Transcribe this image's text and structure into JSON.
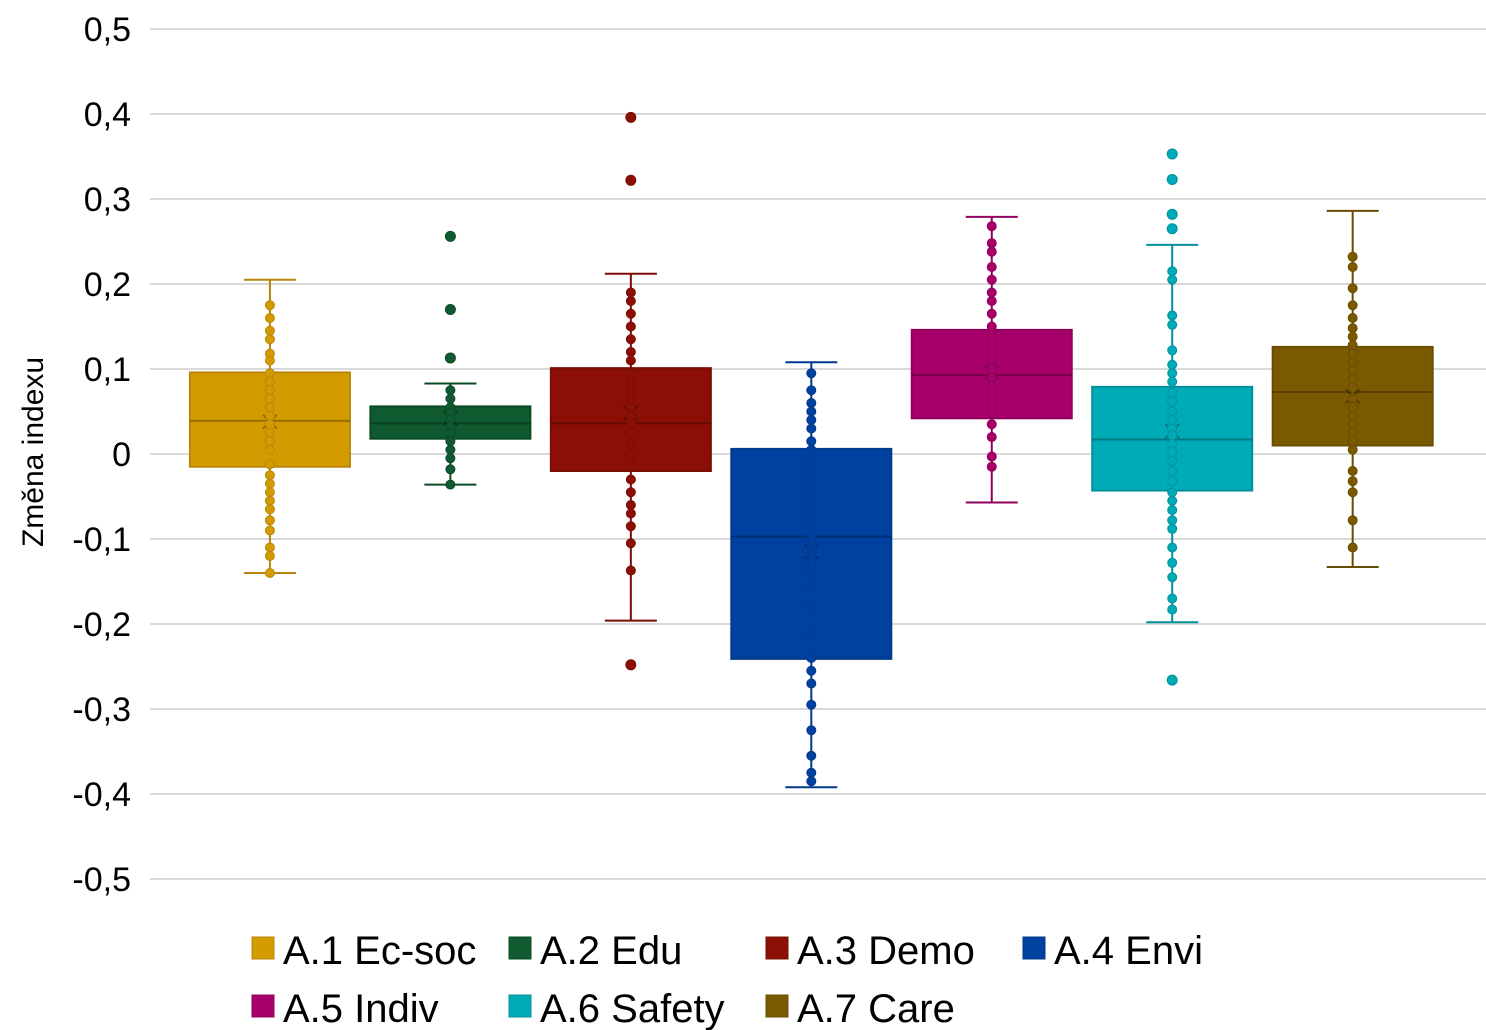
{
  "chart_data": {
    "type": "box",
    "title": "",
    "xlabel": "",
    "ylabel": "Změna indexu",
    "ylim": [
      -0.5,
      0.5
    ],
    "yticks": [
      0.5,
      0.4,
      0.3,
      0.2,
      0.1,
      0,
      -0.1,
      -0.2,
      -0.3,
      -0.4,
      -0.5
    ],
    "ytick_labels": [
      "0,5",
      "0,4",
      "0,3",
      "0,2",
      "0,1",
      "0",
      "-0,1",
      "-0,2",
      "-0,3",
      "-0,4",
      "-0,5"
    ],
    "grid": true,
    "legend_position": "bottom",
    "series": [
      {
        "name": "A.1 Ec-soc",
        "color": "#D49B00",
        "stroke": "#B8860B",
        "q1": -0.015,
        "median": 0.039,
        "q3": 0.096,
        "mean": 0.038,
        "whisker_low": -0.14,
        "whisker_high": 0.205,
        "points": [
          0.175,
          0.16,
          0.145,
          0.135,
          0.118,
          0.11,
          0.095,
          0.085,
          0.075,
          0.065,
          0.055,
          0.045,
          0.035,
          0.025,
          0.015,
          0.005,
          -0.012,
          -0.025,
          -0.035,
          -0.045,
          -0.055,
          -0.065,
          -0.078,
          -0.09,
          -0.11,
          -0.12,
          -0.14
        ],
        "outliers": []
      },
      {
        "name": "A.2 Edu",
        "color": "#0F5A2E",
        "stroke": "#0B4A26",
        "q1": 0.018,
        "median": 0.036,
        "q3": 0.056,
        "mean": 0.042,
        "whisker_low": -0.036,
        "whisker_high": 0.083,
        "points": [
          0.075,
          0.065,
          0.055,
          0.048,
          0.04,
          0.032,
          0.025,
          0.015,
          0.005,
          -0.005,
          -0.018,
          -0.036
        ],
        "outliers": [
          0.256,
          0.17,
          0.113
        ]
      },
      {
        "name": "A.3 Demo",
        "color": "#8B0F05",
        "stroke": "#7A0D04",
        "q1": -0.02,
        "median": 0.036,
        "q3": 0.101,
        "mean": 0.048,
        "whisker_low": -0.196,
        "whisker_high": 0.212,
        "points": [
          0.19,
          0.18,
          0.165,
          0.15,
          0.135,
          0.12,
          0.11,
          0.095,
          0.085,
          0.075,
          0.065,
          0.055,
          0.045,
          0.035,
          0.025,
          0.012,
          0.0,
          -0.015,
          -0.03,
          -0.045,
          -0.06,
          -0.07,
          -0.085,
          -0.105,
          -0.137
        ],
        "outliers": [
          0.396,
          0.322,
          -0.248
        ]
      },
      {
        "name": "A.4 Envi",
        "color": "#0041A0",
        "stroke": "#003A8C",
        "q1": -0.241,
        "median": -0.097,
        "q3": 0.006,
        "mean": -0.115,
        "whisker_low": -0.392,
        "whisker_high": 0.108,
        "points": [
          0.095,
          0.075,
          0.06,
          0.05,
          0.04,
          0.03,
          0.015,
          0.005,
          -0.01,
          -0.02,
          -0.03,
          -0.04,
          -0.05,
          -0.06,
          -0.07,
          -0.085,
          -0.1,
          -0.11,
          -0.12,
          -0.13,
          -0.14,
          -0.155,
          -0.18,
          -0.21,
          -0.24,
          -0.255,
          -0.27,
          -0.295,
          -0.325,
          -0.355,
          -0.375,
          -0.385
        ],
        "outliers": []
      },
      {
        "name": "A.5 Indiv",
        "color": "#A8006A",
        "stroke": "#91005C",
        "q1": 0.042,
        "median": 0.093,
        "q3": 0.146,
        "mean": 0.096,
        "whisker_low": -0.057,
        "whisker_high": 0.279,
        "points": [
          0.268,
          0.248,
          0.238,
          0.22,
          0.205,
          0.19,
          0.18,
          0.165,
          0.15,
          0.14,
          0.13,
          0.12,
          0.11,
          0.1,
          0.09,
          0.08,
          0.07,
          0.06,
          0.05,
          0.035,
          0.02,
          -0.003,
          -0.015
        ],
        "outliers": []
      },
      {
        "name": "A.6 Safety",
        "color": "#00ABB8",
        "stroke": "#00919C",
        "q1": -0.043,
        "median": 0.017,
        "q3": 0.079,
        "mean": 0.027,
        "whisker_low": -0.198,
        "whisker_high": 0.246,
        "points": [
          0.215,
          0.205,
          0.163,
          0.152,
          0.122,
          0.105,
          0.095,
          0.085,
          0.072,
          0.062,
          0.05,
          0.04,
          0.03,
          0.022,
          0.012,
          0.002,
          -0.008,
          -0.02,
          -0.032,
          -0.045,
          -0.055,
          -0.066,
          -0.078,
          -0.088,
          -0.11,
          -0.128,
          -0.145,
          -0.17,
          -0.183
        ],
        "outliers": [
          0.353,
          0.323,
          0.282,
          0.265,
          -0.266
        ]
      },
      {
        "name": "A.7 Care",
        "color": "#7A5A00",
        "stroke": "#684C00",
        "q1": 0.01,
        "median": 0.073,
        "q3": 0.126,
        "mean": 0.068,
        "whisker_low": -0.133,
        "whisker_high": 0.286,
        "points": [
          0.232,
          0.22,
          0.195,
          0.175,
          0.16,
          0.148,
          0.138,
          0.128,
          0.118,
          0.108,
          0.098,
          0.088,
          0.078,
          0.065,
          0.055,
          0.045,
          0.035,
          0.025,
          0.015,
          0.005,
          -0.02,
          -0.032,
          -0.045,
          -0.078,
          -0.11
        ],
        "outliers": []
      }
    ]
  }
}
